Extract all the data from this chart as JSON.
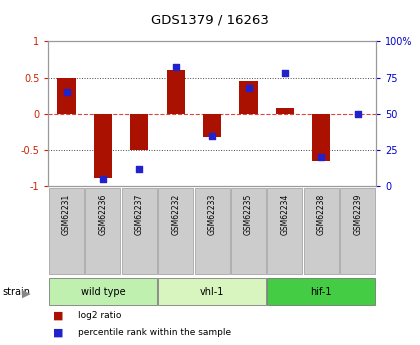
{
  "title": "GDS1379 / 16263",
  "samples": [
    "GSM62231",
    "GSM62236",
    "GSM62237",
    "GSM62232",
    "GSM62233",
    "GSM62235",
    "GSM62234",
    "GSM62238",
    "GSM62239"
  ],
  "log2_ratio": [
    0.5,
    -0.88,
    -0.5,
    0.6,
    -0.32,
    0.46,
    0.08,
    -0.65,
    0.0
  ],
  "percentile_rank": [
    65,
    5,
    12,
    82,
    35,
    68,
    78,
    20,
    50
  ],
  "groups": [
    {
      "label": "wild type",
      "start": 0,
      "end": 3,
      "color": "#c0f0b0"
    },
    {
      "label": "vhl-1",
      "start": 3,
      "end": 6,
      "color": "#d8f5c0"
    },
    {
      "label": "hif-1",
      "start": 6,
      "end": 9,
      "color": "#44cc44"
    }
  ],
  "ylim_left": [
    -1,
    1
  ],
  "ylim_right": [
    0,
    100
  ],
  "bar_color": "#aa1100",
  "dot_color": "#2222cc",
  "axis_color_left": "#cc2200",
  "axis_color_right": "#0000cc",
  "zero_line_color": "#dd4444",
  "label_bg": "#cccccc",
  "white": "#ffffff"
}
